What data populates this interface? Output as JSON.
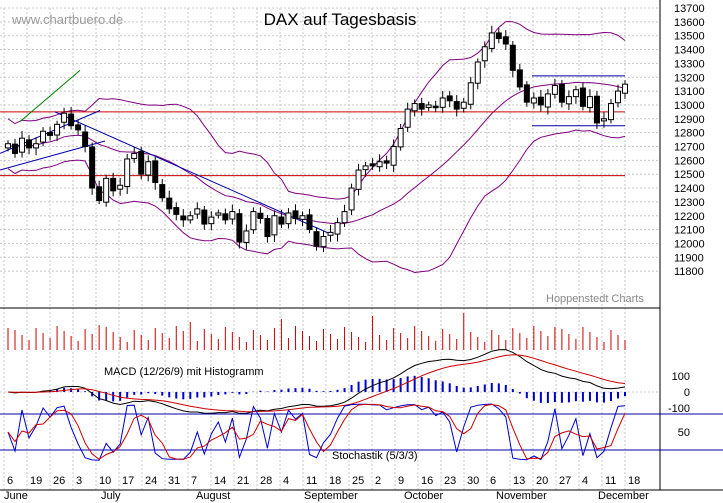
{
  "chart_data": {
    "type": "candlestick",
    "title": "DAX auf Tagesbasis",
    "watermark": "www.chartbuero.de",
    "source_label": "Hoppenstedt Charts",
    "price_axis": {
      "ylim": [
        11700,
        13700
      ],
      "ticks": [
        11800,
        11900,
        12000,
        12100,
        12200,
        12300,
        12400,
        12500,
        12600,
        12700,
        12800,
        12900,
        13000,
        13100,
        13200,
        13300,
        13400,
        13500,
        13600,
        13700
      ]
    },
    "x_axis": {
      "day_labels": [
        "6",
        "19",
        "26",
        "3",
        "10",
        "17",
        "24",
        "31",
        "7",
        "14",
        "21",
        "28",
        "4",
        "11",
        "18",
        "25",
        "2",
        "9",
        "16",
        "23",
        "30",
        "6",
        "13",
        "20",
        "27",
        "4",
        "11",
        "18"
      ],
      "month_labels": [
        "June",
        "July",
        "August",
        "September",
        "October",
        "November",
        "December"
      ]
    },
    "horizontal_lines": {
      "red": [
        12950,
        12490
      ],
      "blue": [
        13210,
        12850
      ]
    },
    "candles_close": [
      12720,
      12650,
      12760,
      12690,
      12720,
      12810,
      12780,
      12860,
      12940,
      12850,
      12820,
      12700,
      12400,
      12310,
      12470,
      12380,
      12420,
      12610,
      12650,
      12500,
      12590,
      12440,
      12330,
      12250,
      12210,
      12170,
      12200,
      12250,
      12140,
      12190,
      12220,
      12170,
      12230,
      12010,
      12090,
      12230,
      12180,
      12050,
      12200,
      12140,
      12220,
      12180,
      12200,
      12100,
      11980,
      12050,
      12080,
      12150,
      12230,
      12400,
      12530,
      12560,
      12560,
      12590,
      12580,
      12700,
      12830,
      12970,
      13010,
      12970,
      13000,
      12980,
      13050,
      13030,
      12970,
      13020,
      13160,
      13310,
      13420,
      13520,
      13480,
      13440,
      13250,
      13130,
      13020,
      13050,
      13000,
      13080,
      13140,
      13020,
      13060,
      13110,
      12990,
      13060,
      12870,
      12900,
      13010,
      13100,
      13150
    ],
    "macd_label": "MACD (12/26/9) mit Histogramm",
    "macd_axis": {
      "ticks": [
        100,
        0,
        -100
      ]
    },
    "stochastic_label": "Stochastik (5/3/3)",
    "stochastic_axis": {
      "ticks": [
        50
      ]
    },
    "colors": {
      "candle": "#000000",
      "bollinger": "#800080",
      "trend_blue": "#0000aa",
      "trend_green": "#008000",
      "support_red": "#cc0000",
      "volume": "#cc0000",
      "macd": "#000000",
      "signal": "#cc0000",
      "histogram": "#0000cc",
      "stoch_k": "#0000cc",
      "stoch_d": "#cc0000"
    }
  }
}
